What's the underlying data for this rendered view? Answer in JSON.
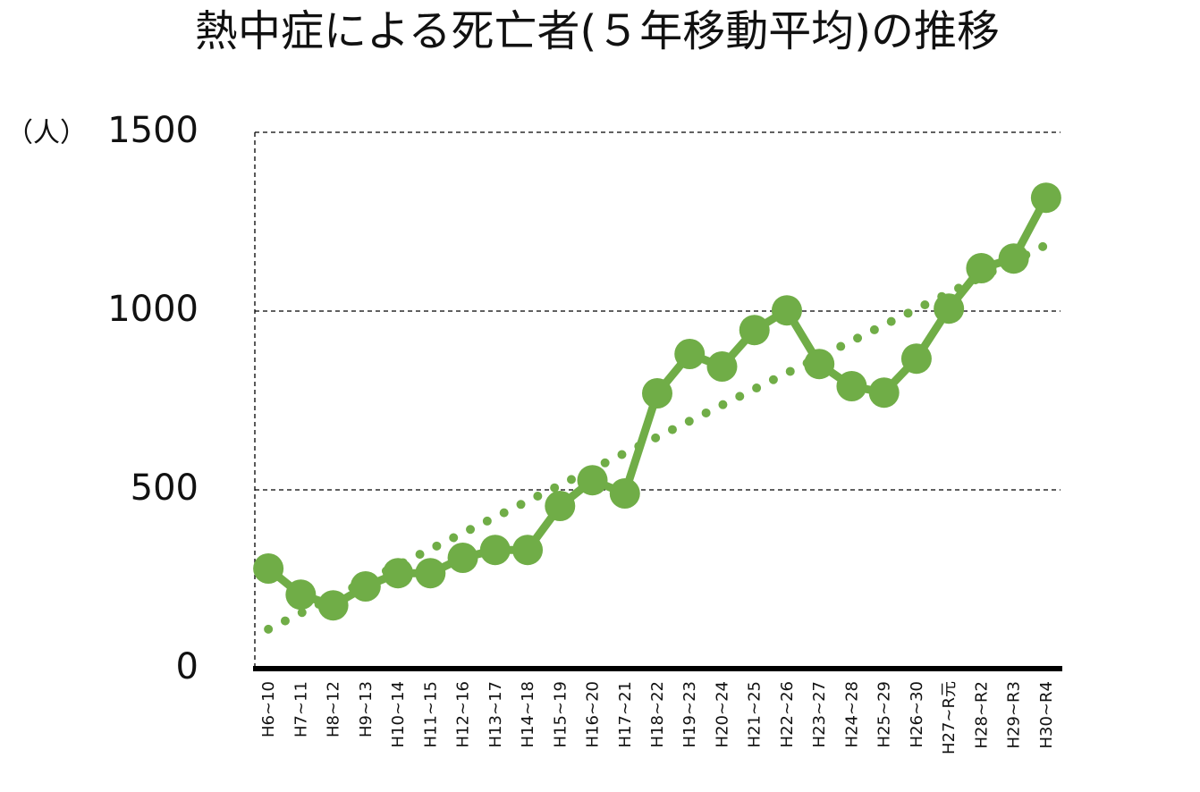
{
  "chart_data": {
    "type": "line",
    "title": "熱中症による死亡者(５年移動平均)の推移",
    "y_label": "（人）",
    "categories": [
      "H6~10",
      "H7~11",
      "H8~12",
      "H9~13",
      "H10~14",
      "H11~15",
      "H12~16",
      "H13~17",
      "H14~18",
      "H15~19",
      "H16~20",
      "H17~21",
      "H18~22",
      "H19~23",
      "H20~24",
      "H21~25",
      "H22~26",
      "H23~27",
      "H24~28",
      "H25~29",
      "H26~30",
      "H27~R元",
      "H28~R2",
      "H29~R3",
      "H30~R4"
    ],
    "series": [
      {
        "color": "#70ad47",
        "values": [
          280,
          207,
          177,
          230,
          267,
          267,
          310,
          332,
          332,
          455,
          527,
          490,
          770,
          880,
          845,
          947,
          1002,
          852,
          790,
          772,
          867,
          1007,
          1120,
          1147,
          1317
        ]
      }
    ],
    "trendline": "linear",
    "ylim": [
      0,
      1500
    ],
    "yticks": [
      0,
      500,
      1000,
      1500
    ],
    "grid": true
  }
}
